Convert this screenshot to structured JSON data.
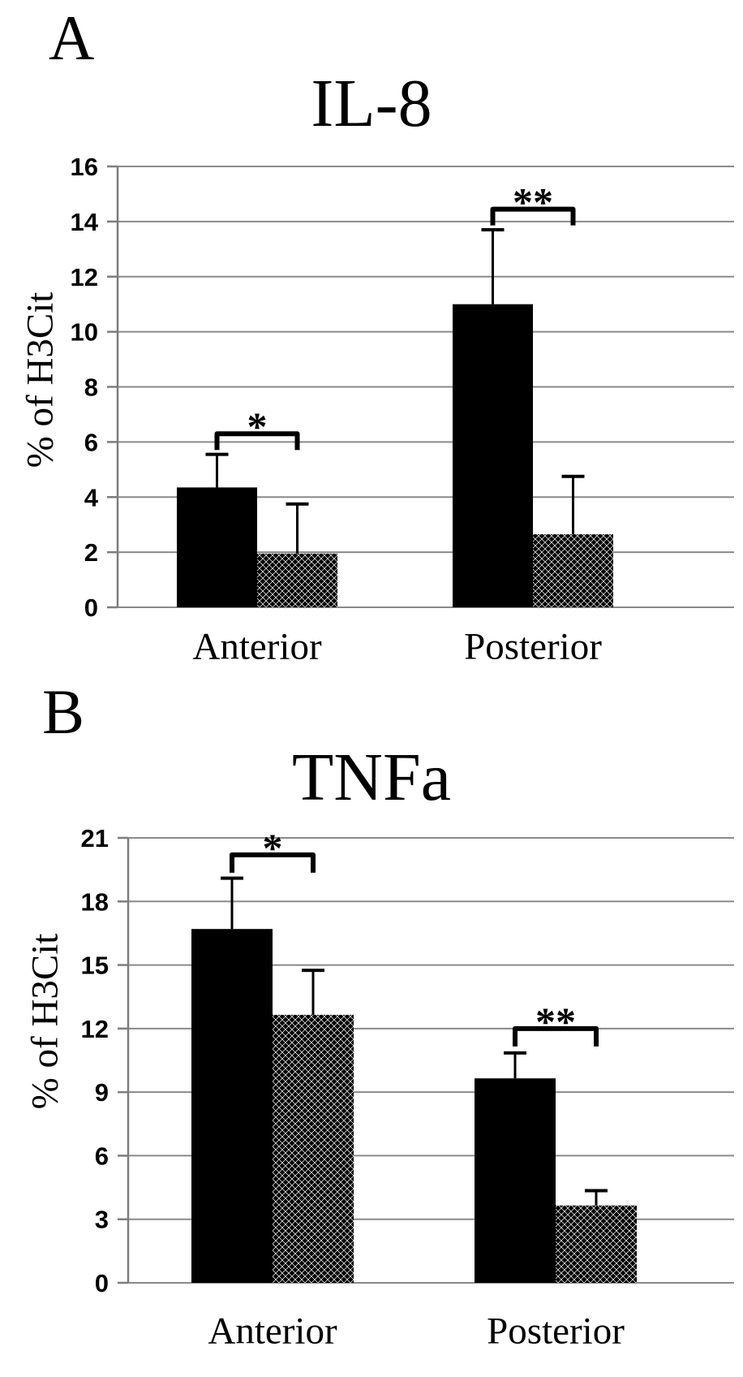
{
  "figure": {
    "background": "#ffffff",
    "style": {
      "bar_fill": "#000000",
      "pattern_ink": "#000000",
      "grid_color": "#8a8a8a",
      "axis_color": "#7d7d7d",
      "text_color": "#000000"
    }
  },
  "chart_data": [
    {
      "type": "bar",
      "panel_label": "A",
      "title": "IL-8",
      "ylabel": "% of H3Cit",
      "xlabel": "",
      "ylim": [
        0,
        16
      ],
      "yticks": [
        0,
        2,
        4,
        6,
        8,
        10,
        12,
        14,
        16
      ],
      "grid": true,
      "legend_position": "none",
      "categories": [
        "Anterior",
        "Posterior"
      ],
      "series": [
        {
          "name": "solid-black-bar",
          "pattern": "solid",
          "values": [
            4.35,
            11.0
          ],
          "error_plus": [
            1.2,
            2.7
          ]
        },
        {
          "name": "checkered-bar",
          "pattern": "checker",
          "values": [
            1.95,
            2.65
          ],
          "error_plus": [
            1.8,
            2.1
          ]
        }
      ],
      "significance": [
        {
          "category_index": 0,
          "label": "*",
          "bracket_y": 6.3
        },
        {
          "category_index": 1,
          "label": "**",
          "bracket_y": 14.45
        }
      ]
    },
    {
      "type": "bar",
      "panel_label": "B",
      "title": "TNFa",
      "ylabel": "% of H3Cit",
      "xlabel": "",
      "ylim": [
        0,
        21
      ],
      "yticks": [
        0,
        3,
        6,
        9,
        12,
        15,
        18,
        21
      ],
      "grid": true,
      "legend_position": "none",
      "categories": [
        "Anterior",
        "Posterior"
      ],
      "series": [
        {
          "name": "solid-black-bar",
          "pattern": "solid",
          "values": [
            16.7,
            9.65
          ],
          "error_plus": [
            2.4,
            1.2
          ]
        },
        {
          "name": "checkered-bar",
          "pattern": "checker",
          "values": [
            12.65,
            3.65
          ],
          "error_plus": [
            2.1,
            0.7
          ]
        }
      ],
      "significance": [
        {
          "category_index": 0,
          "label": "*",
          "bracket_y": 20.2
        },
        {
          "category_index": 1,
          "label": "**",
          "bracket_y": 12.0
        }
      ]
    }
  ]
}
